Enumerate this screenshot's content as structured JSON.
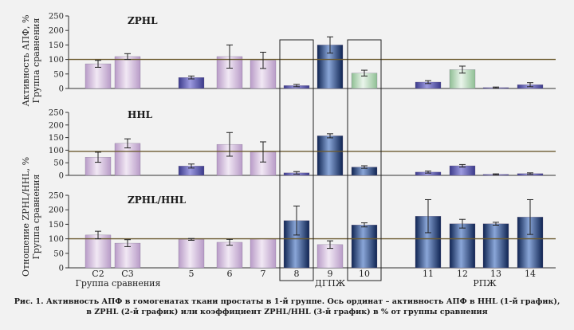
{
  "caption": {
    "line1": "Рис. 1. Активность АПФ в гомогенатах ткани простаты в 1-й группе. Ось ординат – активность АПФ в HHL (1-й график),",
    "line2": "в ZPHL (2-й график) или коэффициент ZPHL/HHL (3-й график) в % от группы сравнения"
  },
  "y_labels": {
    "top_line1": "Активность АПФ, %",
    "top_line2": "Группа сравнения",
    "bottom_line1": "Отношение ZPHL/HHL, %",
    "bottom_line2": "Группа сравнения"
  },
  "group_labels": {
    "comparison": "Группа сравнения",
    "dgpzh": "ДГПЖ",
    "rpzh": "РПЖ"
  },
  "colors": {
    "light_purple": "#d9c6e0",
    "medium_blue": "#5a58a8",
    "dark_navy": "#1c3a70",
    "light_green": "#b5d6b8",
    "reference_line": "#6b5a2e",
    "axis": "#333333"
  },
  "chart_data": [
    {
      "type": "bar",
      "title": "ZPHL",
      "categories": [
        "C2",
        "C3",
        "5",
        "6",
        "7",
        "8",
        "9",
        "10",
        "11",
        "12",
        "13",
        "14"
      ],
      "values": [
        85,
        110,
        38,
        110,
        97,
        10,
        150,
        53,
        22,
        65,
        3,
        13
      ],
      "errors": [
        12,
        10,
        5,
        40,
        28,
        4,
        28,
        10,
        5,
        12,
        2,
        7
      ],
      "bar_colors": [
        "light_purple",
        "light_purple",
        "medium_blue",
        "light_purple",
        "light_purple",
        "medium_blue",
        "dark_navy",
        "light_green",
        "medium_blue",
        "light_green",
        "medium_blue",
        "medium_blue"
      ],
      "ylim": [
        0,
        250
      ],
      "yticks": [
        0,
        50,
        100,
        150,
        200,
        250
      ],
      "reference_line": 100
    },
    {
      "type": "bar",
      "title": "HHL",
      "categories": [
        "C2",
        "C3",
        "5",
        "6",
        "7",
        "8",
        "9",
        "10",
        "11",
        "12",
        "13",
        "14"
      ],
      "values": [
        72,
        127,
        37,
        123,
        93,
        10,
        157,
        33,
        13,
        38,
        4,
        7
      ],
      "errors": [
        20,
        18,
        8,
        47,
        40,
        5,
        8,
        5,
        4,
        5,
        2,
        3
      ],
      "bar_colors": [
        "light_purple",
        "light_purple",
        "medium_blue",
        "light_purple",
        "light_purple",
        "medium_blue",
        "dark_navy",
        "dark_navy",
        "medium_blue",
        "medium_blue",
        "medium_blue",
        "medium_blue"
      ],
      "ylim": [
        0,
        250
      ],
      "yticks": [
        0,
        50,
        100,
        150,
        200,
        250
      ],
      "reference_line": 95
    },
    {
      "type": "bar",
      "title": "ZPHL/HHL",
      "categories": [
        "C2",
        "C3",
        "5",
        "6",
        "7",
        "8",
        "9",
        "10",
        "11",
        "12",
        "13",
        "14"
      ],
      "values": [
        113,
        85,
        98,
        88,
        100,
        163,
        80,
        148,
        178,
        152,
        152,
        175
      ],
      "errors": [
        13,
        12,
        3,
        10,
        0,
        50,
        13,
        7,
        57,
        15,
        5,
        60
      ],
      "bar_colors": [
        "light_purple",
        "light_purple",
        "light_purple",
        "light_purple",
        "light_purple",
        "dark_navy",
        "light_purple",
        "dark_navy",
        "dark_navy",
        "dark_navy",
        "dark_navy",
        "dark_navy"
      ],
      "ylim": [
        0,
        250
      ],
      "yticks": [
        0,
        50,
        100,
        150,
        200,
        250
      ],
      "reference_line": 100
    }
  ]
}
